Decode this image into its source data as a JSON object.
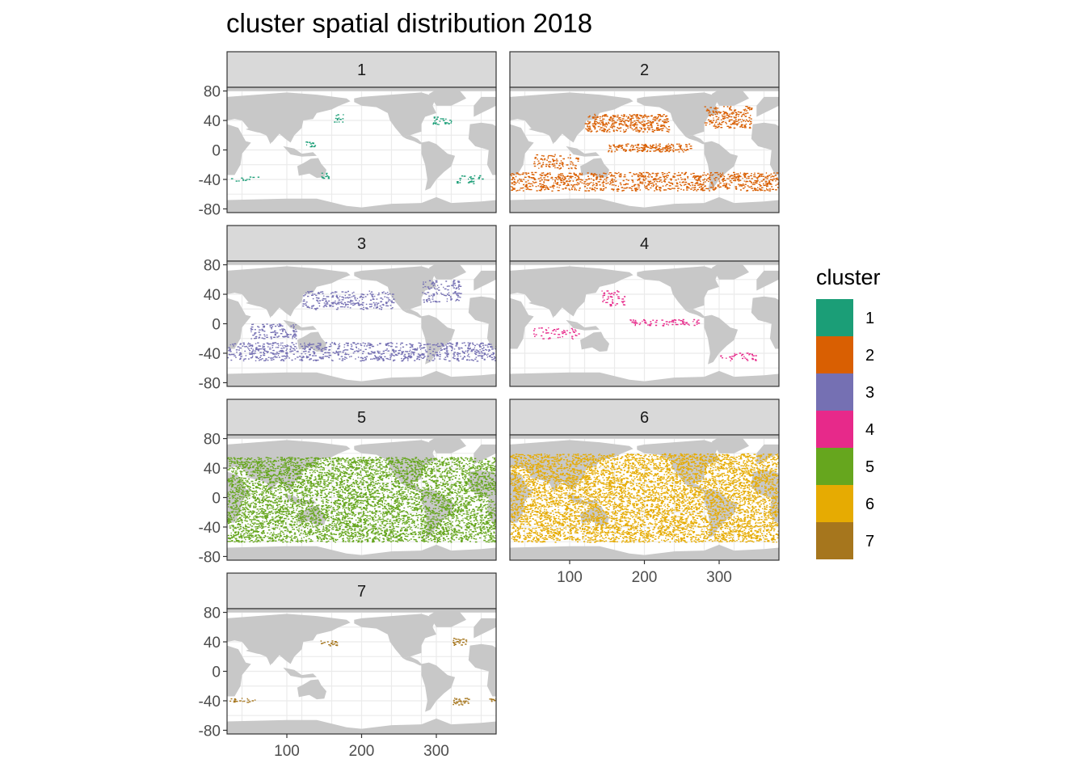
{
  "chart_data": {
    "type": "scatter",
    "title": "cluster spatial distribution 2018",
    "xlabel": "",
    "ylabel": "",
    "facets": [
      "1",
      "2",
      "3",
      "4",
      "5",
      "6",
      "7"
    ],
    "xlim": [
      20,
      380
    ],
    "ylim": [
      -85,
      85
    ],
    "x_ticks": [
      100,
      200,
      300
    ],
    "y_ticks": [
      80,
      40,
      0,
      -40,
      -80
    ],
    "grid": true,
    "legend": {
      "title": "cluster",
      "position": "right",
      "items": [
        {
          "label": "1",
          "color": "#1b9e77"
        },
        {
          "label": "2",
          "color": "#d95f02"
        },
        {
          "label": "3",
          "color": "#7570b3"
        },
        {
          "label": "4",
          "color": "#e7298a"
        },
        {
          "label": "5",
          "color": "#66a61e"
        },
        {
          "label": "6",
          "color": "#e6ab02"
        },
        {
          "label": "7",
          "color": "#a6761d"
        }
      ]
    },
    "series": [
      {
        "name": "1",
        "color": "#1b9e77",
        "regions": [
          {
            "lon": [
              160,
              175
            ],
            "lat": [
              38,
              48
            ],
            "density": 0.4
          },
          {
            "lon": [
              295,
              320
            ],
            "lat": [
              35,
              45
            ],
            "density": 0.5
          },
          {
            "lon": [
              125,
              135
            ],
            "lat": [
              5,
              12
            ],
            "density": 0.4
          },
          {
            "lon": [
              25,
              60
            ],
            "lat": [
              -42,
              -36
            ],
            "density": 0.3
          },
          {
            "lon": [
              325,
              360
            ],
            "lat": [
              -45,
              -35
            ],
            "density": 0.3
          },
          {
            "lon": [
              145,
              155
            ],
            "lat": [
              -38,
              -30
            ],
            "density": 0.4
          }
        ]
      },
      {
        "name": "2",
        "color": "#d95f02",
        "regions": [
          {
            "lon": [
              120,
              230
            ],
            "lat": [
              25,
              48
            ],
            "density": 0.55
          },
          {
            "lon": [
              150,
              260
            ],
            "lat": [
              -2,
              8
            ],
            "density": 0.6
          },
          {
            "lon": [
              20,
              380
            ],
            "lat": [
              -55,
              -30
            ],
            "density": 0.45
          },
          {
            "lon": [
              280,
              340
            ],
            "lat": [
              30,
              60
            ],
            "density": 0.45
          },
          {
            "lon": [
              50,
              110
            ],
            "lat": [
              -25,
              -5
            ],
            "density": 0.35
          }
        ]
      },
      {
        "name": "3",
        "color": "#7570b3",
        "regions": [
          {
            "lon": [
              120,
              240
            ],
            "lat": [
              20,
              45
            ],
            "density": 0.35
          },
          {
            "lon": [
              20,
              380
            ],
            "lat": [
              -50,
              -25
            ],
            "density": 0.35
          },
          {
            "lon": [
              50,
              110
            ],
            "lat": [
              -20,
              0
            ],
            "density": 0.35
          },
          {
            "lon": [
              280,
              330
            ],
            "lat": [
              30,
              60
            ],
            "density": 0.3
          }
        ]
      },
      {
        "name": "4",
        "color": "#e7298a",
        "regions": [
          {
            "lon": [
              140,
              175
            ],
            "lat": [
              25,
              45
            ],
            "density": 0.3
          },
          {
            "lon": [
              180,
              270
            ],
            "lat": [
              -2,
              6
            ],
            "density": 0.4
          },
          {
            "lon": [
              50,
              110
            ],
            "lat": [
              -20,
              -5
            ],
            "density": 0.25
          },
          {
            "lon": [
              300,
              350
            ],
            "lat": [
              -50,
              -40
            ],
            "density": 0.25
          }
        ]
      },
      {
        "name": "5",
        "color": "#66a61e",
        "regions": [
          {
            "lon": [
              20,
              380
            ],
            "lat": [
              -60,
              55
            ],
            "density": 0.55
          }
        ]
      },
      {
        "name": "6",
        "color": "#e6ab02",
        "regions": [
          {
            "lon": [
              20,
              380
            ],
            "lat": [
              -60,
              60
            ],
            "density": 0.55
          }
        ]
      },
      {
        "name": "7",
        "color": "#a6761d",
        "regions": [
          {
            "lon": [
              145,
              165
            ],
            "lat": [
              35,
              42
            ],
            "density": 0.45
          },
          {
            "lon": [
              320,
              340
            ],
            "lat": [
              36,
              45
            ],
            "density": 0.45
          },
          {
            "lon": [
              320,
              340
            ],
            "lat": [
              -45,
              -36
            ],
            "density": 0.55
          },
          {
            "lon": [
              20,
              60
            ],
            "lat": [
              -42,
              -36
            ],
            "density": 0.3
          },
          {
            "lon": [
              370,
              380
            ],
            "lat": [
              -40,
              -35
            ],
            "density": 0.6
          }
        ]
      }
    ]
  }
}
